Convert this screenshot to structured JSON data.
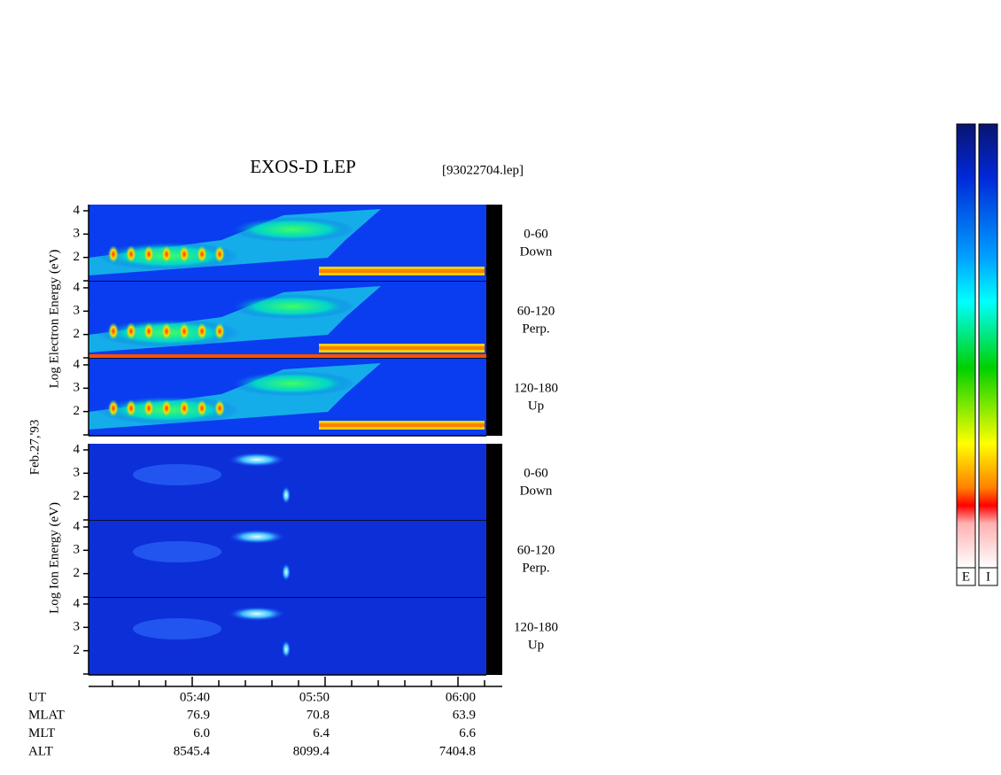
{
  "title": "EXOS-D LEP",
  "file": "[93022704.lep]",
  "date": "Feb.27,'93",
  "electron_axis_label": "Log  Electron  Energy (eV)",
  "ion_axis_label": "Log  Ion  Energy (eV)",
  "energy_axis": {
    "ylim": [
      1,
      4.15
    ],
    "yticks": [
      2,
      3,
      4
    ]
  },
  "electron_panels": [
    {
      "angle": "0-60",
      "direction": "Down"
    },
    {
      "angle": "60-120",
      "direction": "Perp."
    },
    {
      "angle": "120-180",
      "direction": "Up"
    }
  ],
  "ion_panels": [
    {
      "angle": "0-60",
      "direction": "Down"
    },
    {
      "angle": "60-120",
      "direction": "Perp."
    },
    {
      "angle": "120-180",
      "direction": "Up"
    }
  ],
  "ephemeris": {
    "labels": [
      "UT",
      "MLAT",
      "MLT",
      "ALT"
    ],
    "rows": [
      [
        "05:40",
        "05:50",
        "06:00"
      ],
      [
        "76.9",
        "70.8",
        "63.9"
      ],
      [
        "6.0",
        "6.4",
        "6.6"
      ],
      [
        "8545.4",
        "8099.4",
        "7404.8"
      ]
    ]
  },
  "colorbar_labels": [
    "E",
    "I"
  ]
}
